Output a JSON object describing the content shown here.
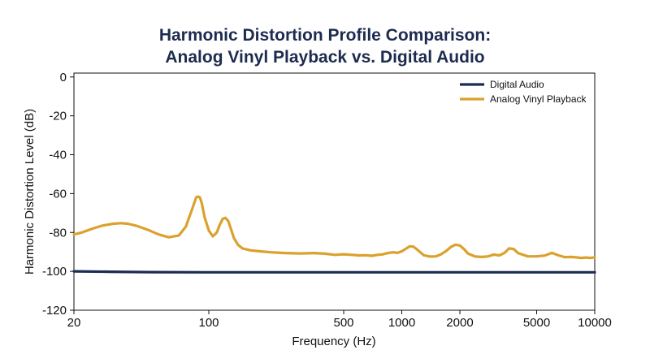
{
  "chart_data": {
    "type": "line",
    "title": "Harmonic Distortion Profile Comparison:",
    "subtitle": "Analog Vinyl Playback vs. Digital Audio",
    "xlabel": "Frequency (Hz)",
    "ylabel": "Harmonic Distortion Level (dB)",
    "xscale": "log",
    "xlim": [
      20,
      10000
    ],
    "ylim": [
      -120,
      2
    ],
    "xticks": [
      20,
      100,
      500,
      1000,
      2000,
      5000,
      10000
    ],
    "xtick_labels": [
      "20",
      "100",
      "500",
      "1000",
      "2000",
      "5000",
      "10000"
    ],
    "yticks": [
      0,
      -20,
      -40,
      -60,
      -80,
      -100,
      -120
    ],
    "ytick_labels": [
      "0",
      "-20",
      "-40",
      "-60",
      "-80",
      "-100",
      "-120"
    ],
    "grid": false,
    "legend_position": "top-right",
    "series": [
      {
        "name": "Digital Audio",
        "color": "#1c2b54",
        "x": [
          20,
          30,
          50,
          100,
          200,
          500,
          1000,
          2000,
          5000,
          10000
        ],
        "y": [
          -100,
          -100.2,
          -100.4,
          -100.5,
          -100.5,
          -100.5,
          -100.5,
          -100.5,
          -100.5,
          -100.5
        ]
      },
      {
        "name": "Analog Vinyl Playback",
        "color": "#dba12e",
        "x": [
          20,
          22,
          25,
          28,
          32,
          35,
          38,
          42,
          48,
          55,
          62,
          70,
          76,
          82,
          86,
          88,
          90,
          92,
          95,
          100,
          105,
          110,
          114,
          118,
          122,
          126,
          130,
          135,
          142,
          150,
          165,
          185,
          210,
          250,
          300,
          350,
          400,
          450,
          500,
          550,
          600,
          650,
          700,
          750,
          800,
          850,
          900,
          950,
          1000,
          1050,
          1100,
          1150,
          1200,
          1300,
          1400,
          1500,
          1600,
          1700,
          1800,
          1900,
          2000,
          2100,
          2200,
          2400,
          2600,
          2800,
          3000,
          3200,
          3400,
          3600,
          3800,
          4000,
          4500,
          5000,
          5500,
          6000,
          6500,
          7000,
          7500,
          8000,
          8500,
          9000,
          9500,
          10000
        ],
        "y": [
          -81,
          -80,
          -78,
          -76.5,
          -75.5,
          -75.2,
          -75.5,
          -76.5,
          -78.5,
          -81,
          -82.5,
          -81.5,
          -77,
          -68,
          -62,
          -61.5,
          -62,
          -65,
          -72,
          -79,
          -82,
          -80,
          -76,
          -73,
          -72.5,
          -74,
          -78,
          -83,
          -86.5,
          -88.3,
          -89.2,
          -89.7,
          -90.2,
          -90.6,
          -90.8,
          -90.6,
          -90.9,
          -91.5,
          -91.2,
          -91.5,
          -91.8,
          -91.7,
          -92,
          -91.5,
          -91.2,
          -90.6,
          -90.2,
          -90.5,
          -89.7,
          -88.4,
          -87.1,
          -87.3,
          -88.8,
          -91.7,
          -92.4,
          -92.3,
          -91.2,
          -89.5,
          -87.4,
          -86.3,
          -86.7,
          -88.5,
          -90.8,
          -92.4,
          -92.6,
          -92.3,
          -91.4,
          -91.8,
          -90.6,
          -88.2,
          -88.5,
          -90.6,
          -92.3,
          -92.3,
          -91.9,
          -90.5,
          -91.8,
          -92.7,
          -92.6,
          -92.8,
          -93.1,
          -92.9,
          -93.1,
          -92.8
        ]
      }
    ]
  }
}
